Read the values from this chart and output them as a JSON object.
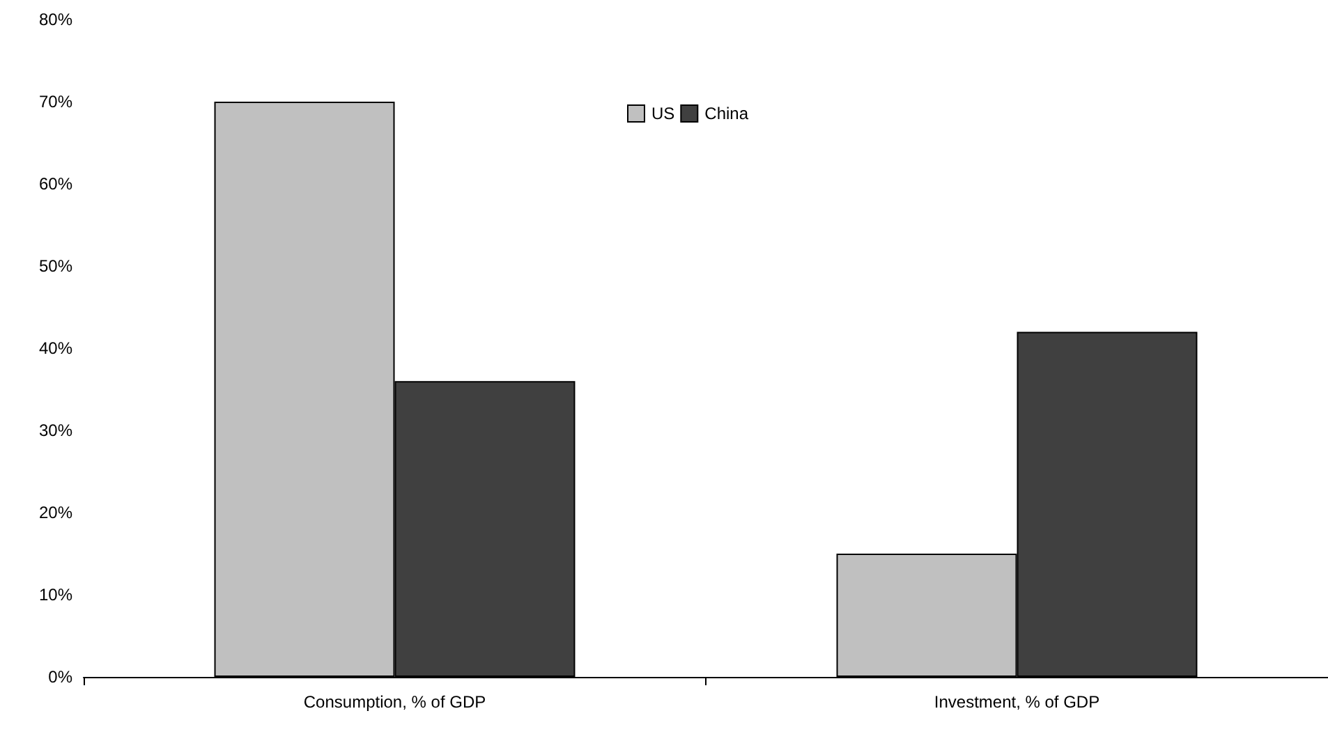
{
  "chart_data": {
    "type": "bar",
    "categories": [
      "Consumption, % of GDP",
      "Investment, % of GDP"
    ],
    "series": [
      {
        "name": "US",
        "color": "#c0c0c0",
        "values": [
          70,
          15
        ]
      },
      {
        "name": "China",
        "color": "#404040",
        "values": [
          36,
          42
        ]
      }
    ],
    "ylim": [
      0,
      80
    ],
    "yticks": [
      {
        "value": 0,
        "label": "0%"
      },
      {
        "value": 10,
        "label": "10%"
      },
      {
        "value": 20,
        "label": "20%"
      },
      {
        "value": 30,
        "label": "30%"
      },
      {
        "value": 40,
        "label": "40%"
      },
      {
        "value": 50,
        "label": "50%"
      },
      {
        "value": 60,
        "label": "60%"
      },
      {
        "value": 70,
        "label": "70%"
      },
      {
        "value": 80,
        "label": "80%"
      }
    ],
    "grid": false,
    "legend": "top"
  }
}
